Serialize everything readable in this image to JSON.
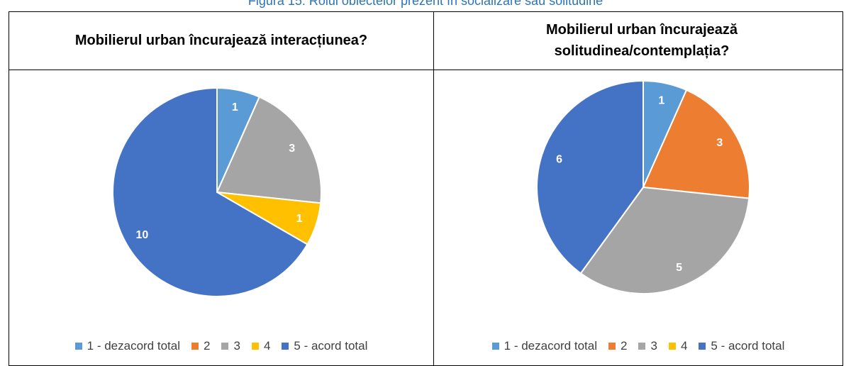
{
  "caption": "Figura 15: Rolul obiectelor prezent în socializare sau solitudine",
  "chart_data": [
    {
      "type": "pie",
      "title": "Mobilierul urban încurajează interacțiunea?",
      "categories": [
        "1 - dezacord total",
        "2",
        "3",
        "4",
        "5 - acord total"
      ],
      "values": [
        1,
        0,
        3,
        1,
        10
      ],
      "colors": [
        "#5b9bd5",
        "#ed7d31",
        "#a5a5a5",
        "#ffc000",
        "#4472c4"
      ]
    },
    {
      "type": "pie",
      "title": "Mobilierul urban încurajează solitudinea/contemplația?",
      "categories": [
        "1 - dezacord total",
        "2",
        "3",
        "4",
        "5 - acord total"
      ],
      "values": [
        1,
        3,
        5,
        0,
        6
      ],
      "colors": [
        "#5b9bd5",
        "#ed7d31",
        "#a5a5a5",
        "#ffc000",
        "#4472c4"
      ]
    }
  ]
}
